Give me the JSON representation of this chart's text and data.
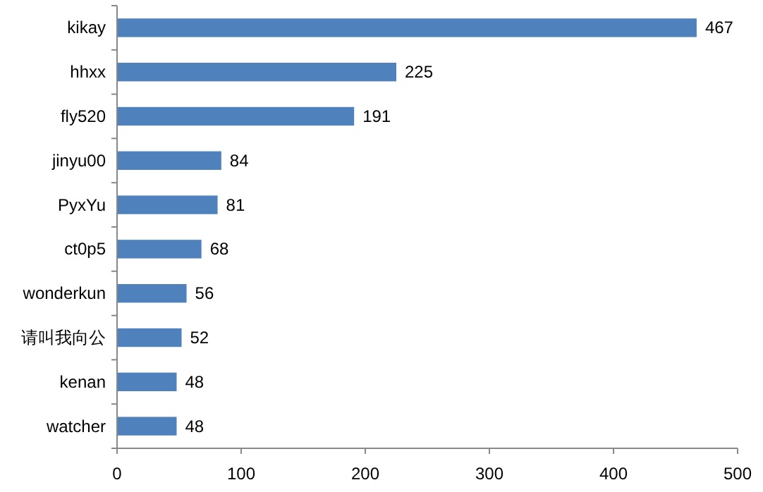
{
  "chart_data": {
    "type": "bar",
    "orientation": "horizontal",
    "categories": [
      "kikay",
      "hhxx",
      "fly520",
      "jinyu00",
      "PyxYu",
      "ct0p5",
      "wonderkun",
      "请叫我向公",
      "kenan",
      "watcher"
    ],
    "values": [
      467,
      225,
      191,
      84,
      81,
      68,
      56,
      52,
      48,
      48
    ],
    "color": "#4f81bd",
    "xlim": [
      0,
      500
    ],
    "xticks": [
      0,
      100,
      200,
      300,
      400,
      500
    ],
    "data_labels": true
  }
}
